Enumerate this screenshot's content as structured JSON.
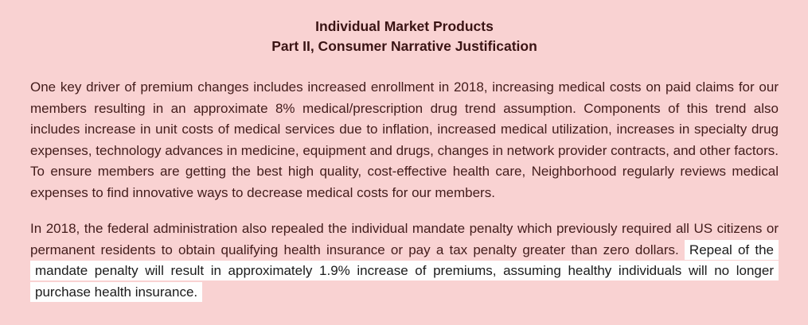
{
  "page": {
    "background_color": "#f9d2d2",
    "body_text_color": "#421c1b",
    "title_text_color": "#3a1414",
    "highlight_background_color": "#fefefe",
    "highlight_text_color": "#1b1b1b"
  },
  "title": {
    "line1": "Individual Market Products",
    "line2": "Part II, Consumer Narrative Justification"
  },
  "paragraphs": {
    "premium_drivers": "One key driver of premium changes includes increased enrollment in 2018, increasing medical costs on paid claims for our members resulting in an approximate 8% medical/prescription drug trend assumption. Components of this trend also includes increase in unit costs of medical services due to inflation, increased medical utilization, increases in specialty drug expenses, technology advances in medicine, equipment and drugs, changes in network provider contracts, and other factors. To ensure members are getting the best high quality, cost-effective health care, Neighborhood regularly reviews medical expenses to find innovative ways to decrease medical costs for our members.",
    "mandate_normal": "In 2018, the federal administration also repealed the individual mandate penalty which previously required all US citizens or permanent residents to obtain qualifying health insurance or pay a tax penalty greater than zero dollars. ",
    "mandate_highlight": "Repeal of the mandate penalty will result in approximately 1.9% increase of premiums, assuming healthy individuals will no longer purchase health insurance."
  }
}
